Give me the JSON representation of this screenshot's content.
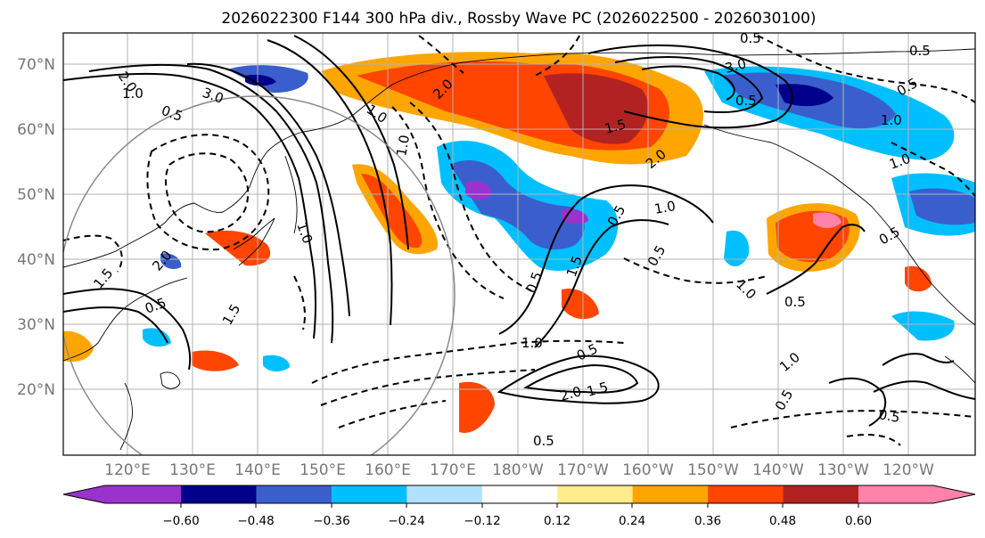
{
  "title": "2026022300 F144 300 hPa div., Rossby Wave PC (2026022500 - 2026030100)",
  "lat_labels": [
    "70°N",
    "60°N",
    "50°N",
    "40°N",
    "30°N",
    "20°N"
  ],
  "lon_labels": [
    "120°E",
    "130°E",
    "140°E",
    "150°E",
    "160°E",
    "170°E",
    "180°W",
    "170°W",
    "160°W",
    "150°W",
    "140°W",
    "130°W",
    "120°W"
  ],
  "colorbar": {
    "colors": [
      "#9a32cd",
      "#00008b",
      "#3a5fcd",
      "#00bfff",
      "#b0e2ff",
      "#ffffff",
      "#ffec8b",
      "#ffa500",
      "#ff4500",
      "#b22222",
      "#ff82ab"
    ],
    "tick_labels": [
      "−0.60",
      "−0.48",
      "−0.36",
      "−0.24",
      "−0.12",
      "0.12",
      "0.24",
      "0.36",
      "0.48",
      "0.60"
    ],
    "extend": "both"
  },
  "contour_labels": [
    "2.0",
    "1.0",
    "0.5",
    "3.0",
    "0.5",
    "3.0",
    "0.5",
    "1.0",
    "0.5",
    "0.5",
    "1.0",
    "1.0",
    "2.0",
    "1.0",
    "1.0",
    "1.5",
    "2.0",
    "0.5",
    "0.5",
    "1.0",
    "1.5",
    "0.5",
    "0.5",
    "0.5",
    "1.5",
    "2.0",
    "1.5",
    "1.0",
    "1.0",
    "0.5",
    "0.5",
    "1.0",
    "0.5",
    "0.5",
    "0.5",
    "2.0",
    "1.5"
  ]
}
